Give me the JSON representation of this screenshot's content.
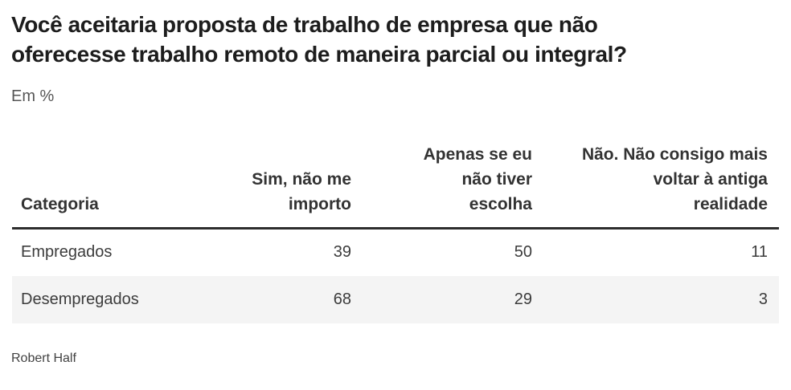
{
  "header": {
    "title": "Você aceitaria proposta de trabalho de empresa que não\noferecesse trabalho remoto de maneira parcial ou integral?",
    "subtitle": "Em %"
  },
  "table": {
    "columns": [
      {
        "label": "Categoria"
      },
      {
        "label": "Sim, não me\nimporto"
      },
      {
        "label": "Apenas se eu\nnão tiver\nescolha"
      },
      {
        "label": "Não. Não consigo mais\nvoltar à antiga\nrealidade"
      }
    ],
    "rows": [
      {
        "category": "Empregados",
        "values": [
          "39",
          "50",
          "11"
        ]
      },
      {
        "category": "Desempregados",
        "values": [
          "68",
          "29",
          "3"
        ]
      }
    ]
  },
  "footer": {
    "source": "Robert Half"
  },
  "colors": {
    "title_text": "#1d1d1d",
    "subtitle_text": "#565656",
    "header_text": "#333333",
    "body_text": "#3c3c3c",
    "header_rule": "#2d2d2d",
    "striped_row_bg": "#f4f4f4",
    "page_bg": "#ffffff"
  },
  "chart_data": {
    "type": "table",
    "title": "Você aceitaria proposta de trabalho de empresa que não oferecesse trabalho remoto de maneira parcial ou integral?",
    "unit": "Em %",
    "columns": [
      "Categoria",
      "Sim, não me importo",
      "Apenas se eu não tiver escolha",
      "Não. Não consigo mais voltar à antiga realidade"
    ],
    "rows": [
      [
        "Empregados",
        39,
        50,
        11
      ],
      [
        "Desempregados",
        68,
        29,
        3
      ]
    ],
    "source": "Robert Half"
  }
}
